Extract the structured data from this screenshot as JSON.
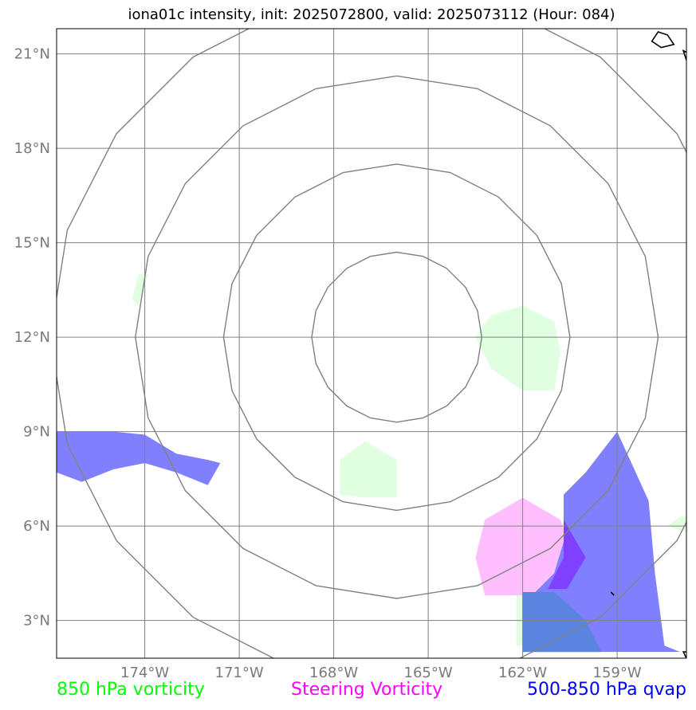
{
  "title": "iona01c intensity, init: 2025072800, valid: 2025073112 (Hour: 084)",
  "map": {
    "lat_range": [
      1.8,
      21.8
    ],
    "lon_range": [
      -176.8,
      -156.8
    ],
    "lat_ticks": [
      {
        "value": 3,
        "label": "3°N"
      },
      {
        "value": 6,
        "label": "6°N"
      },
      {
        "value": 9,
        "label": "9°N"
      },
      {
        "value": 12,
        "label": "12°N"
      },
      {
        "value": 15,
        "label": "15°N"
      },
      {
        "value": 18,
        "label": "18°N"
      },
      {
        "value": 21,
        "label": "21°N"
      }
    ],
    "lon_ticks": [
      {
        "value": -174,
        "label": "174°W"
      },
      {
        "value": -171,
        "label": "171°W"
      },
      {
        "value": -168,
        "label": "168°W"
      },
      {
        "value": -165,
        "label": "165°W"
      },
      {
        "value": -162,
        "label": "162°W"
      },
      {
        "value": -159,
        "label": "159°W"
      }
    ],
    "grid": true,
    "range_rings": {
      "center": {
        "lon": -166.0,
        "lat": 12.0
      },
      "radii_deg": [
        2.7,
        5.5,
        8.3,
        11.0
      ],
      "color": "#808080"
    },
    "colors": {
      "vorticity_850": "#e0ffe0",
      "steering_vorticity": "#ffbfff",
      "qvap": "#8080ff",
      "qvap_steering_overlap": "#8040ff",
      "qvap_vorticity_overlap": "#5a84e0",
      "grid": "#808080",
      "frame": "#000000",
      "land": "#000000"
    }
  },
  "features": {
    "vorticity_850": [
      [
        [
          -162.0,
          13.0
        ],
        [
          -161.0,
          12.5
        ],
        [
          -160.8,
          11.5
        ],
        [
          -161.0,
          10.3
        ],
        [
          -162.0,
          10.3
        ],
        [
          -163.0,
          11.0
        ],
        [
          -163.5,
          12.0
        ],
        [
          -163.0,
          12.7
        ]
      ],
      [
        [
          -167.0,
          8.7
        ],
        [
          -166.0,
          8.1
        ],
        [
          -166.0,
          6.9
        ],
        [
          -167.0,
          6.9
        ],
        [
          -167.8,
          7.0
        ],
        [
          -167.8,
          8.1
        ]
      ],
      [
        [
          -173.9,
          14.0
        ],
        [
          -174.2,
          14.0
        ],
        [
          -174.4,
          13.2
        ],
        [
          -174.2,
          13.0
        ]
      ],
      [
        [
          -157.0,
          6.3
        ],
        [
          -156.8,
          6.3
        ],
        [
          -156.8,
          5.8
        ],
        [
          -157.4,
          6.0
        ]
      ],
      [
        [
          -162.2,
          3.9
        ],
        [
          -161.8,
          4.0
        ],
        [
          -161.6,
          2.2
        ],
        [
          -162.2,
          2.2
        ]
      ]
    ],
    "steering_vorticity": [
      [
        [
          -162.0,
          6.9
        ],
        [
          -160.8,
          6.2
        ],
        [
          -160.4,
          5.0
        ],
        [
          -161.0,
          4.0
        ],
        [
          -162.0,
          3.8
        ],
        [
          -163.2,
          3.8
        ],
        [
          -163.5,
          5.0
        ],
        [
          -163.2,
          6.2
        ]
      ]
    ],
    "qvap": [
      [
        [
          -176.8,
          9.0
        ],
        [
          -175.0,
          9.0
        ],
        [
          -174.0,
          8.9
        ],
        [
          -173.0,
          8.3
        ],
        [
          -172.0,
          8.1
        ],
        [
          -171.6,
          8.0
        ],
        [
          -172.0,
          7.3
        ],
        [
          -173.0,
          7.7
        ],
        [
          -174.0,
          8.0
        ],
        [
          -175.0,
          7.8
        ],
        [
          -176.0,
          7.4
        ],
        [
          -176.8,
          7.7
        ]
      ],
      [
        [
          -159.0,
          9.0
        ],
        [
          -158.0,
          6.8
        ],
        [
          -157.8,
          4.5
        ],
        [
          -157.5,
          2.2
        ],
        [
          -157.0,
          2.0
        ],
        [
          -158.0,
          2.0
        ],
        [
          -160.0,
          2.0
        ],
        [
          -161.0,
          2.0
        ],
        [
          -162.0,
          2.0
        ],
        [
          -162.0,
          3.5
        ],
        [
          -161.0,
          4.5
        ],
        [
          -160.7,
          5.5
        ],
        [
          -160.7,
          7.0
        ],
        [
          -160.0,
          7.7
        ]
      ]
    ],
    "qvap_steering_overlap": [
      [
        [
          -160.7,
          6.2
        ],
        [
          -160.0,
          5.0
        ],
        [
          -160.6,
          4.0
        ],
        [
          -161.2,
          4.0
        ],
        [
          -160.7,
          5.0
        ]
      ]
    ],
    "qvap_vorticity_overlap": [
      [
        [
          -162.0,
          3.9
        ],
        [
          -161.0,
          3.9
        ],
        [
          -160.0,
          3.0
        ],
        [
          -159.5,
          2.0
        ],
        [
          -162.0,
          2.0
        ]
      ]
    ],
    "land": [
      [
        [
          -157.7,
          21.7
        ],
        [
          -157.4,
          21.6
        ],
        [
          -157.2,
          21.3
        ],
        [
          -157.6,
          21.2
        ],
        [
          -157.9,
          21.4
        ]
      ],
      [
        [
          -156.9,
          21.1
        ],
        [
          -156.7,
          21.0
        ],
        [
          -156.8,
          20.8
        ]
      ],
      [
        [
          -159.2,
          3.9
        ],
        [
          -159.1,
          3.8
        ]
      ],
      [
        [
          -156.9,
          2.0
        ],
        [
          -156.7,
          2.0
        ],
        [
          -156.8,
          1.8
        ]
      ]
    ]
  },
  "legend": {
    "left": {
      "label": "850 hPa vorticity",
      "color": "#00ff00"
    },
    "center": {
      "label": "Steering Vorticity",
      "color": "#ff00ff"
    },
    "right": {
      "label": "500-850 hPa qvap",
      "color": "#0000ff"
    }
  }
}
